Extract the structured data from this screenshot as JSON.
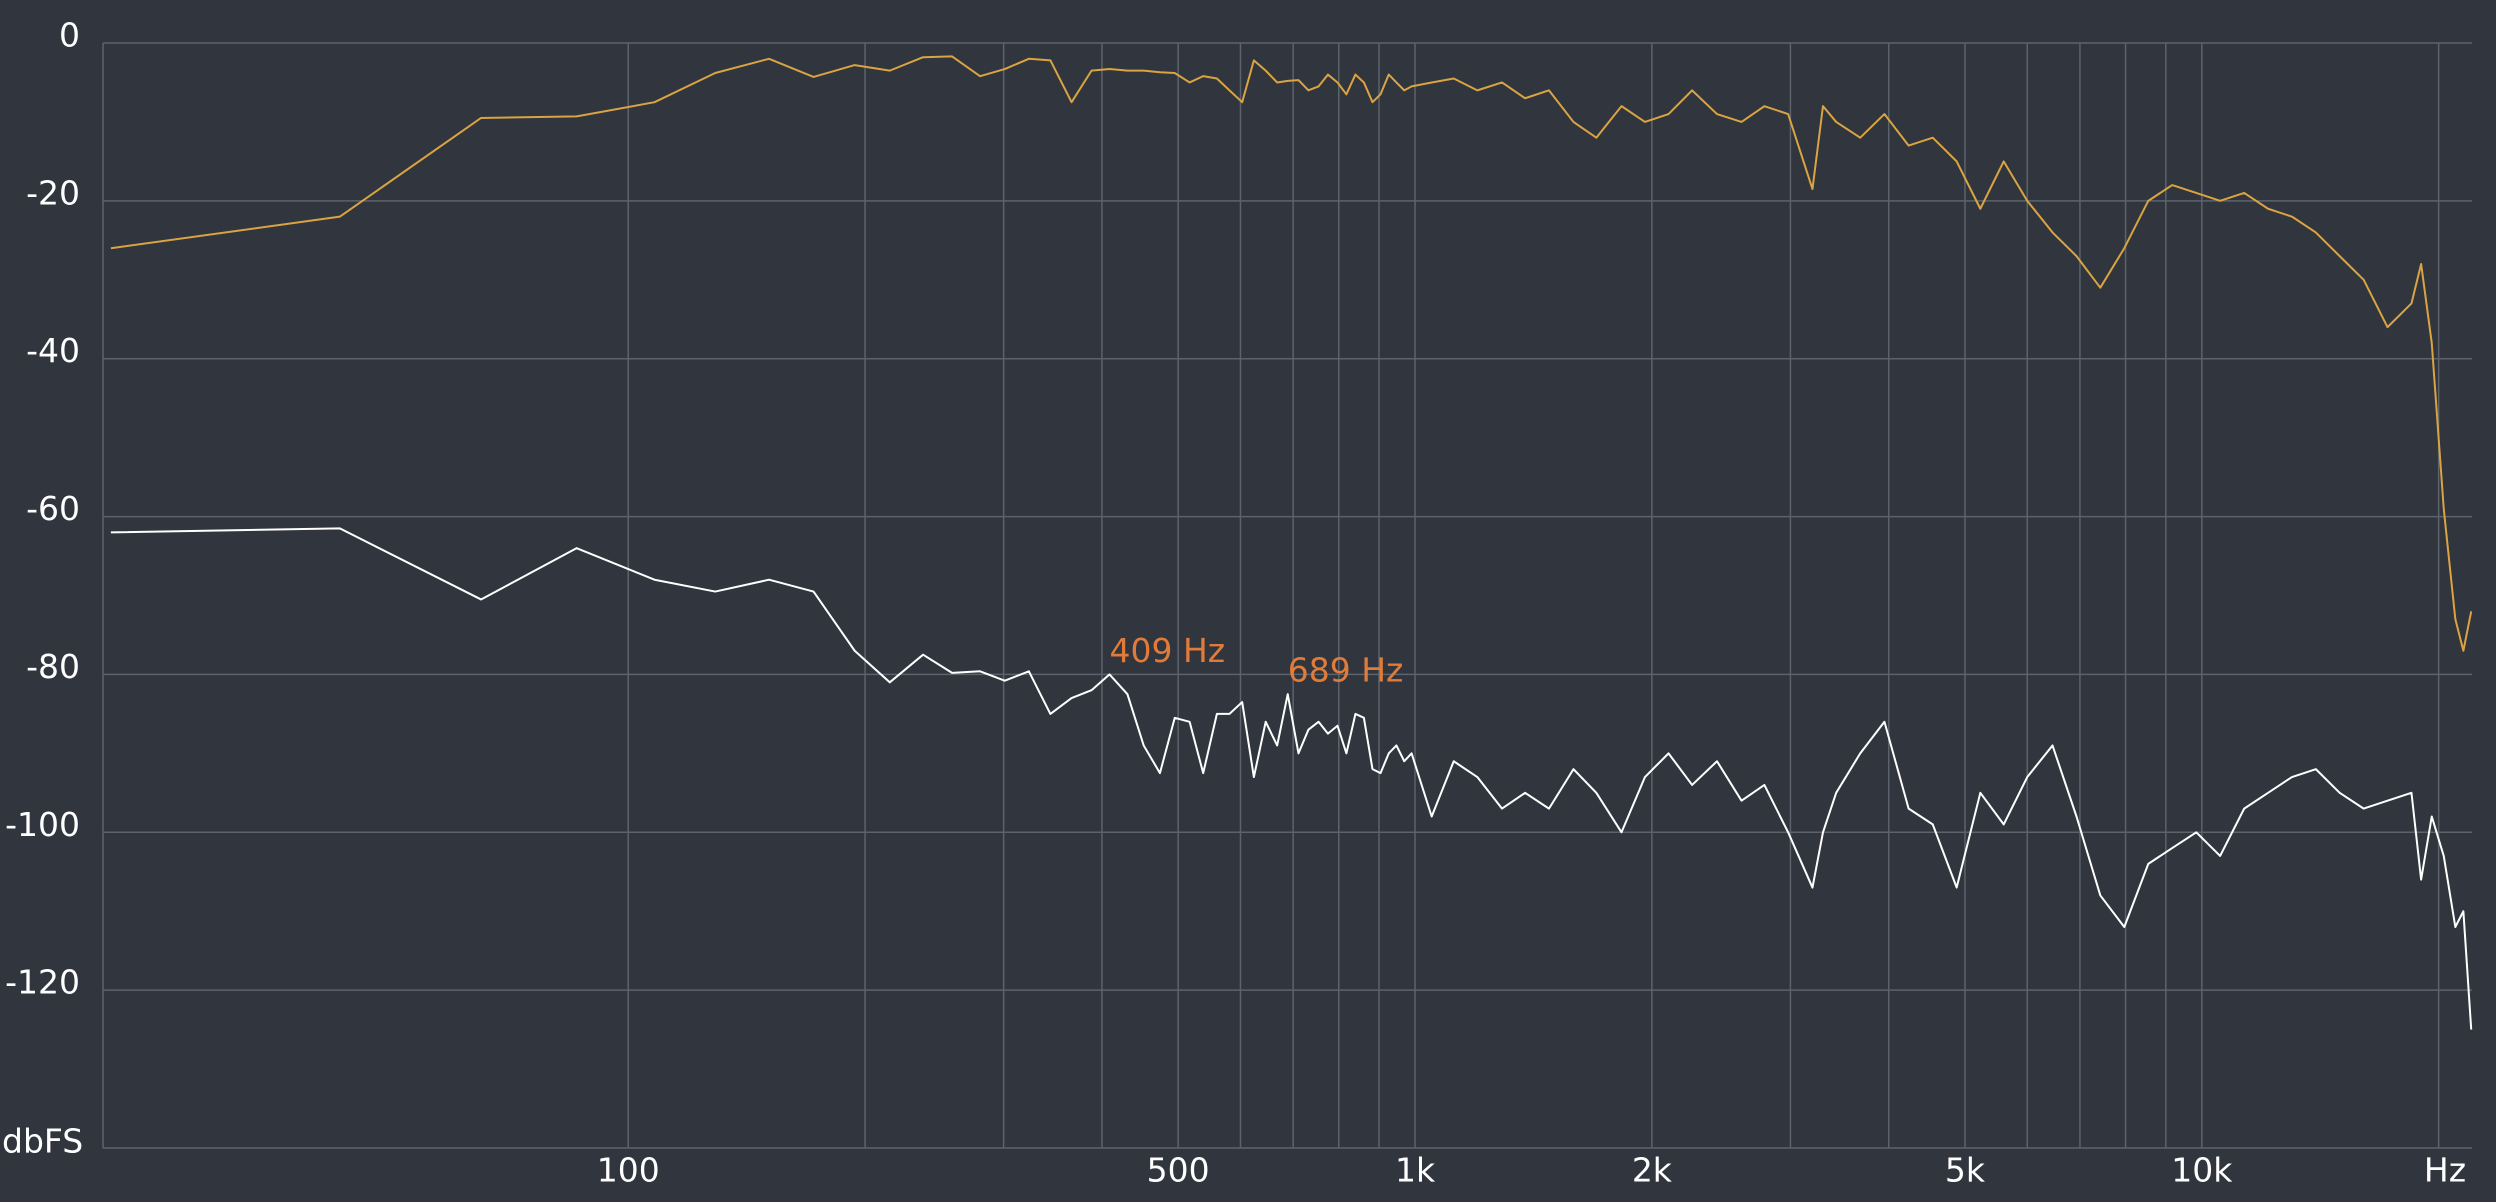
{
  "chart_data": {
    "type": "line",
    "y_label": "dbFS",
    "x_label": "Hz",
    "xscale": "log",
    "grid": true,
    "xlim": [
      21.5,
      22050
    ],
    "ylim": [
      -140,
      0
    ],
    "yticks": [
      0,
      -20,
      -40,
      -60,
      -80,
      -100,
      -120
    ],
    "xticks": [
      100,
      500,
      {
        "value": 1000,
        "label": "1k"
      },
      {
        "value": 2000,
        "label": "2k"
      },
      {
        "value": 5000,
        "label": "5k"
      },
      {
        "value": 10000,
        "label": "10k"
      }
    ],
    "x_minor_grid": [
      200,
      300,
      400,
      600,
      700,
      800,
      900,
      3000,
      4000,
      6000,
      7000,
      8000,
      9000,
      20000
    ],
    "x": [
      22,
      43,
      65,
      86,
      108,
      129,
      151,
      172,
      194,
      215,
      237,
      258,
      280,
      301,
      323,
      344,
      366,
      388,
      409,
      431,
      452,
      474,
      495,
      517,
      538,
      560,
      581,
      603,
      624,
      646,
      668,
      689,
      711,
      732,
      754,
      775,
      797,
      818,
      840,
      861,
      883,
      904,
      926,
      947,
      969,
      990,
      1050,
      1120,
      1200,
      1290,
      1380,
      1480,
      1590,
      1700,
      1830,
      1960,
      2100,
      2250,
      2420,
      2600,
      2780,
      2980,
      3200,
      3300,
      3430,
      3680,
      3950,
      4240,
      4550,
      4880,
      5230,
      5600,
      6000,
      6460,
      6930,
      7430,
      7970,
      8550,
      9170,
      9840,
      10550,
      11320,
      12140,
      13020,
      13960,
      14970,
      16060,
      17220,
      18470,
      19000,
      19600,
      20300,
      21000,
      21500,
      22000
    ],
    "series": [
      {
        "color": "#d9a441",
        "values": [
          -26,
          -22,
          -9.5,
          -9.3,
          -7.5,
          -3.8,
          -2,
          -4.3,
          -2.8,
          -3.5,
          -1.8,
          -1.7,
          -4.2,
          -3.3,
          -2,
          -2.2,
          -7.5,
          -3.5,
          -3.3,
          -3.5,
          -3.5,
          -3.7,
          -3.8,
          -5,
          -4.2,
          -4.5,
          -6,
          -7.5,
          -2.2,
          -3.5,
          -5,
          -4.8,
          -4.7,
          -6,
          -5.5,
          -4,
          -5,
          -6.5,
          -4,
          -5,
          -7.5,
          -6.5,
          -4,
          -5,
          -6,
          -5.5,
          -5,
          -4.5,
          -6,
          -5,
          -7,
          -6,
          -10,
          -12,
          -8,
          -10,
          -9,
          -6,
          -9,
          -10,
          -8,
          -9,
          -18.5,
          -8,
          -10,
          -12,
          -9,
          -13,
          -12,
          -15,
          -21,
          -15,
          -20,
          -24,
          -27,
          -31,
          -26,
          -20,
          -18,
          -19,
          -20,
          -19,
          -21,
          -22,
          -24,
          -27,
          -30,
          -36,
          -33,
          -28,
          -38,
          -59,
          -73,
          -77,
          -72
        ]
      },
      {
        "color": "#ffffff",
        "values": [
          -62,
          -61.5,
          -70.5,
          -64,
          -68,
          -69.5,
          -68,
          -69.5,
          -77,
          -81,
          -77.5,
          -79.8,
          -79.6,
          -80.8,
          -79.6,
          -85,
          -83,
          -82,
          -80,
          -82.5,
          -89,
          -92.5,
          -85.5,
          -86,
          -92.5,
          -85,
          -85,
          -83.5,
          -93,
          -86,
          -89,
          -82.5,
          -90,
          -87,
          -86,
          -87.5,
          -86.5,
          -90,
          -85,
          -85.5,
          -92,
          -92.5,
          -90,
          -89,
          -91,
          -90,
          -98,
          -91,
          -93,
          -97,
          -95,
          -97,
          -92,
          -95,
          -100,
          -93,
          -90,
          -94,
          -91,
          -96,
          -94,
          -100,
          -107,
          -100,
          -95,
          -90,
          -86,
          -97,
          -99,
          -107,
          -95,
          -99,
          -93,
          -89,
          -98,
          -108,
          -112,
          -104,
          -102,
          -100,
          -103,
          -97,
          -95,
          -93,
          -92,
          -95,
          -97,
          -96,
          -95,
          -106,
          -98,
          -103,
          -112,
          -110,
          -125
        ]
      }
    ],
    "annotations": [
      {
        "text": "409 Hz",
        "x": 409,
        "y": -80,
        "color": "#e07b3a"
      },
      {
        "text": "689 Hz",
        "x": 689,
        "y": -82.5,
        "color": "#e07b3a"
      }
    ]
  }
}
